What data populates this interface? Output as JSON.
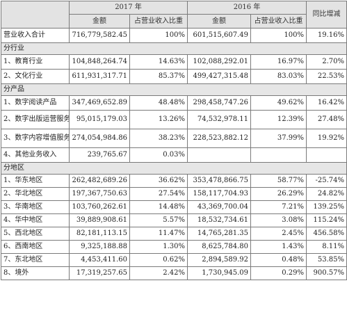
{
  "header": {
    "year_2017": "2017 年",
    "year_2016": "2016 年",
    "yoy": "同比增减",
    "amount": "金额",
    "share": "占营业收入比重"
  },
  "total": {
    "label": "营业收入合计",
    "amt_2017": "716,779,582.45",
    "pct_2017": "100%",
    "amt_2016": "601,515,607.49",
    "pct_2016": "100%",
    "yoy": "19.16%"
  },
  "sections": {
    "industry": "分行业",
    "product": "分产品",
    "region": "分地区"
  },
  "industry_rows": [
    {
      "label": "1、教育行业",
      "amt_2017": "104,848,264.74",
      "pct_2017": "14.63%",
      "amt_2016": "102,088,292.01",
      "pct_2016": "16.97%",
      "yoy": "2.70%"
    },
    {
      "label": "2、文化行业",
      "amt_2017": "611,931,317.71",
      "pct_2017": "85.37%",
      "amt_2016": "499,427,315.48",
      "pct_2016": "83.03%",
      "yoy": "22.53%"
    }
  ],
  "product_rows": [
    {
      "label": "1、数字阅读产品",
      "amt_2017": "347,469,652.89",
      "pct_2017": "48.48%",
      "amt_2016": "298,458,747.26",
      "pct_2016": "49.62%",
      "yoy": "16.42%"
    },
    {
      "label": "2、数字出版运营服务",
      "amt_2017": "95,015,179.03",
      "pct_2017": "13.26%",
      "amt_2016": "74,532,978.11",
      "pct_2016": "12.39%",
      "yoy": "27.48%"
    },
    {
      "label": "3、数字内容增值服务",
      "amt_2017": "274,054,984.86",
      "pct_2017": "38.23%",
      "amt_2016": "228,523,882.12",
      "pct_2016": "37.99%",
      "yoy": "19.92%"
    },
    {
      "label": "4、其他业务收入",
      "amt_2017": "239,765.67",
      "pct_2017": "0.03%",
      "amt_2016": "",
      "pct_2016": "",
      "yoy": ""
    }
  ],
  "region_rows": [
    {
      "label": "1、华东地区",
      "amt_2017": "262,482,689.26",
      "pct_2017": "36.62%",
      "amt_2016": "353,478,866.75",
      "pct_2016": "58.77%",
      "yoy": "-25.74%"
    },
    {
      "label": "2、华北地区",
      "amt_2017": "197,367,750.63",
      "pct_2017": "27.54%",
      "amt_2016": "158,117,704.93",
      "pct_2016": "26.29%",
      "yoy": "24.82%"
    },
    {
      "label": "3、华南地区",
      "amt_2017": "103,760,262.61",
      "pct_2017": "14.48%",
      "amt_2016": "43,369,700.04",
      "pct_2016": "7.21%",
      "yoy": "139.25%"
    },
    {
      "label": "4、华中地区",
      "amt_2017": "39,889,908.61",
      "pct_2017": "5.57%",
      "amt_2016": "18,532,734.61",
      "pct_2016": "3.08%",
      "yoy": "115.24%"
    },
    {
      "label": "5、西北地区",
      "amt_2017": "82,181,113.15",
      "pct_2017": "11.47%",
      "amt_2016": "14,765,281.35",
      "pct_2016": "2.45%",
      "yoy": "456.58%"
    },
    {
      "label": "6、西南地区",
      "amt_2017": "9,325,188.88",
      "pct_2017": "1.30%",
      "amt_2016": "8,625,784.80",
      "pct_2016": "1.43%",
      "yoy": "8.11%"
    },
    {
      "label": "7、东北地区",
      "amt_2017": "4,453,411.60",
      "pct_2017": "0.62%",
      "amt_2016": "2,894,589.92",
      "pct_2016": "0.48%",
      "yoy": "53.85%"
    },
    {
      "label": "8、境外",
      "amt_2017": "17,319,257.65",
      "pct_2017": "2.42%",
      "amt_2016": "1,730,945.09",
      "pct_2016": "0.29%",
      "yoy": "900.57%"
    }
  ]
}
